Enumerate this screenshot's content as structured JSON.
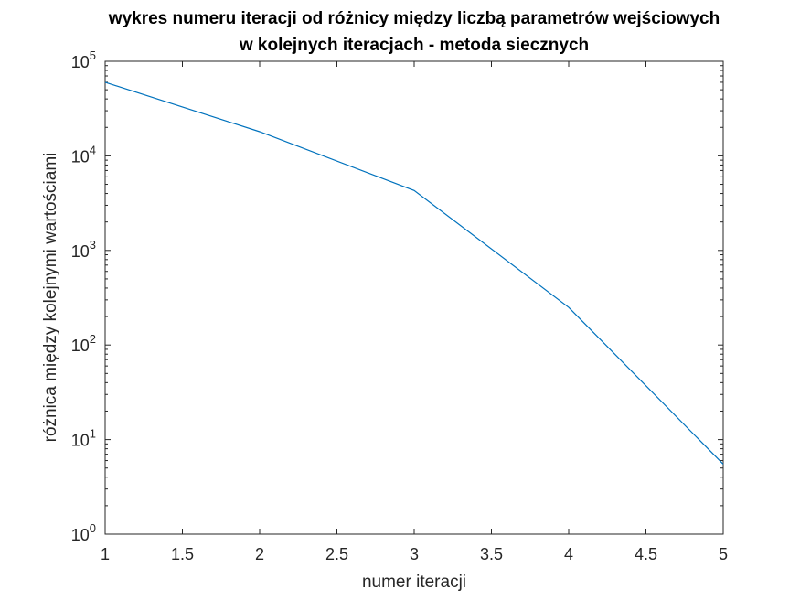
{
  "chart_data": {
    "type": "line",
    "title": [
      "wykres numeru iteracji od różnicy między liczbą parametrów wejściowych",
      "w kolejnych iteracjach - metoda siecznych"
    ],
    "xlabel": "numer iteracji",
    "ylabel": "różnica między kolejnymi wartościami",
    "xlim": [
      1,
      5
    ],
    "ylim": [
      1,
      100000
    ],
    "yscale": "log",
    "grid": false,
    "line_color": "#0072BD",
    "x_ticks": [
      "1",
      "1.5",
      "2",
      "2.5",
      "3",
      "3.5",
      "4",
      "4.5",
      "5"
    ],
    "y_ticks": [
      {
        "base": "10",
        "exp": "0"
      },
      {
        "base": "10",
        "exp": "1"
      },
      {
        "base": "10",
        "exp": "2"
      },
      {
        "base": "10",
        "exp": "3"
      },
      {
        "base": "10",
        "exp": "4"
      },
      {
        "base": "10",
        "exp": "5"
      }
    ],
    "x": [
      1,
      2,
      3,
      4,
      5
    ],
    "y": [
      60000,
      18000,
      4300,
      250,
      5.5
    ]
  }
}
